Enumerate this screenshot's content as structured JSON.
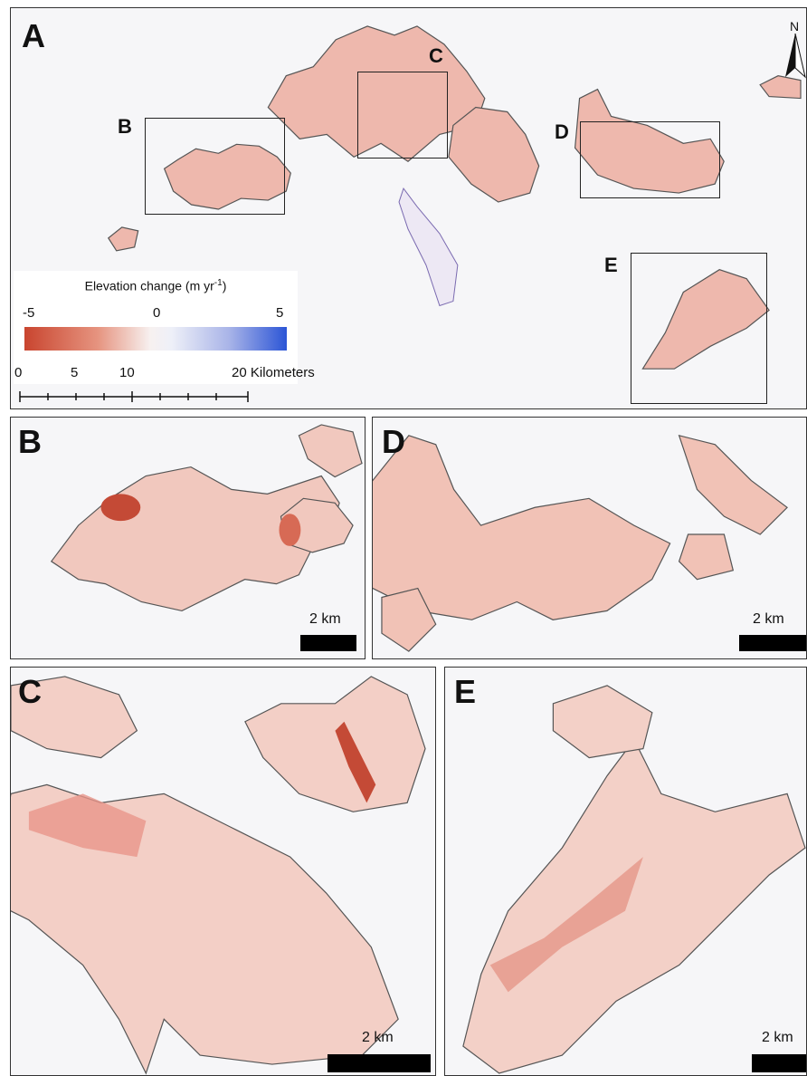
{
  "panels": {
    "a": {
      "letter": "A"
    },
    "b": {
      "letter": "B",
      "scale_label": "2 km"
    },
    "c": {
      "letter": "C",
      "scale_label": "2 km"
    },
    "d": {
      "letter": "D",
      "scale_label": "2 km"
    },
    "e": {
      "letter": "E",
      "scale_label": "2 km"
    }
  },
  "inset_boxes": [
    "B",
    "C",
    "D",
    "E"
  ],
  "north_arrow": {
    "label": "N",
    "icon": "north-arrow-icon"
  },
  "legend": {
    "title": "Elevation change (m yr",
    "title_sup": "-1",
    "title_close": ")",
    "min_label": "-5",
    "mid_label": "0",
    "max_label": "5",
    "colors": {
      "negative": "#c9452f",
      "neutral": "#f7f4f4",
      "positive": "#2b55d6"
    }
  },
  "scale": {
    "labels": [
      "0",
      "5",
      "10",
      "20 Kilometers"
    ]
  }
}
